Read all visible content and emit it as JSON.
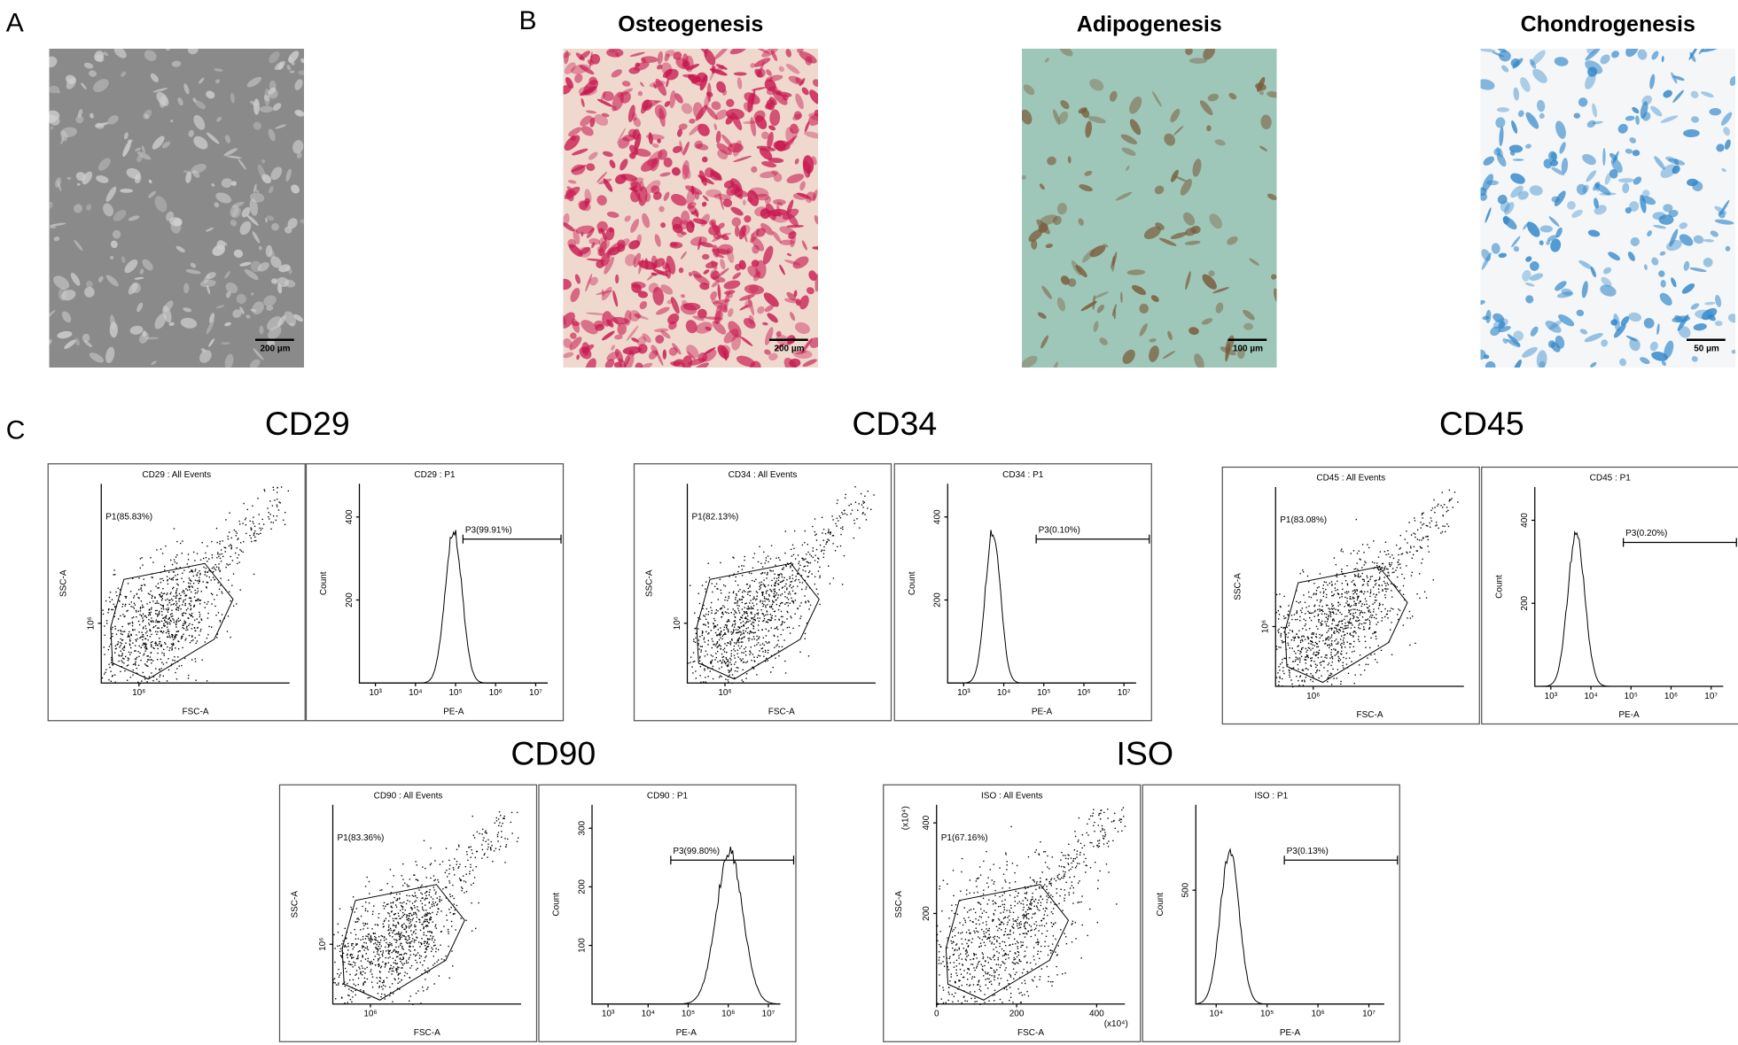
{
  "panels": {
    "a": "A",
    "b": "B",
    "c": "C"
  },
  "micro": [
    {
      "scale": "200 µm"
    },
    {
      "title": "Osteogenesis",
      "scale": "200 µm"
    },
    {
      "title": "Adipogenesis",
      "scale": "100 µm"
    },
    {
      "title": "Chondrogenesis",
      "scale": "50 µm"
    }
  ],
  "labels": {
    "fsc": "FSC-A",
    "ssc": "SSC-A",
    "pe": "PE-A",
    "count": "Count"
  },
  "flow": [
    {
      "marker": "CD29",
      "scatter": {
        "title": "CD29 : All Events",
        "gate": "P1(85.83%)",
        "xticks": [
          "10⁶"
        ],
        "yticks": [
          "10⁶"
        ]
      },
      "hist": {
        "title": "CD29 : P1",
        "gate": "P3(99.91%)",
        "xticks": [
          "10³",
          "10⁴",
          "10⁵",
          "10⁶",
          "10⁷"
        ],
        "yticks": [
          "200",
          "400"
        ]
      }
    },
    {
      "marker": "CD34",
      "scatter": {
        "title": "CD34 : All Events",
        "gate": "P1(82.13%)",
        "xticks": [
          "10⁶"
        ],
        "yticks": [
          "10⁶"
        ]
      },
      "hist": {
        "title": "CD34 : P1",
        "gate": "P3(0.10%)",
        "xticks": [
          "10³",
          "10⁴",
          "10⁵",
          "10⁶",
          "10⁷"
        ],
        "yticks": [
          "200",
          "400"
        ]
      }
    },
    {
      "marker": "CD45",
      "scatter": {
        "title": "CD45 : All Events",
        "gate": "P1(83.08%)",
        "xticks": [
          "10⁶"
        ],
        "yticks": [
          "10⁶"
        ]
      },
      "hist": {
        "title": "CD45 : P1",
        "gate": "P3(0.20%)",
        "xticks": [
          "10³",
          "10⁴",
          "10⁵",
          "10⁶",
          "10⁷"
        ],
        "yticks": [
          "200",
          "400"
        ]
      }
    },
    {
      "marker": "CD90",
      "scatter": {
        "title": "CD90 : All Events",
        "gate": "P1(83.36%)",
        "xticks": [
          "10⁶"
        ],
        "yticks": [
          "10⁶"
        ]
      },
      "hist": {
        "title": "CD90 : P1",
        "gate": "P3(99.80%)",
        "xticks": [
          "10³",
          "10⁴",
          "10⁵",
          "10⁶",
          "10⁷"
        ],
        "yticks": [
          "100",
          "200",
          "300"
        ]
      }
    },
    {
      "marker": "ISO",
      "scatter": {
        "title": "ISO : All Events",
        "gate": "P1(67.16%)",
        "xticks": [
          "0",
          "200",
          "400"
        ],
        "yticks": [
          "200",
          "400"
        ],
        "xmult": "(x10⁴)",
        "ymult": "(x10⁴)"
      },
      "hist": {
        "title": "ISO : P1",
        "gate": "P3(0.13%)",
        "xticks": [
          "10⁴",
          "10⁵",
          "10⁶",
          "10⁷"
        ],
        "yticks": [
          "500"
        ]
      }
    }
  ]
}
